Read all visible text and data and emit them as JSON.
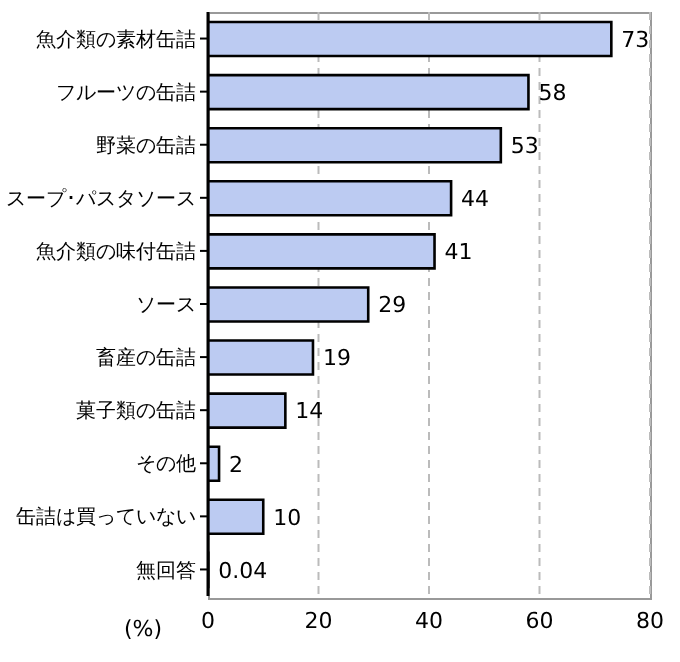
{
  "chart_data": {
    "type": "bar",
    "orientation": "horizontal",
    "xlabel": "(%)",
    "categories": [
      "魚介類の素材缶詰",
      "フルーツの缶詰",
      "野菜の缶詰",
      "スープ･パスタソース",
      "魚介類の味付缶詰",
      "ソース",
      "畜産の缶詰",
      "菓子類の缶詰",
      "その他",
      "缶詰は買っていない",
      "無回答"
    ],
    "values": [
      73,
      58,
      53,
      44,
      41,
      29,
      19,
      14,
      2,
      10,
      0.04
    ],
    "color": "#bccbf2",
    "xlim": [
      0,
      80
    ],
    "xticks": [
      0,
      20,
      40,
      60,
      80
    ],
    "grid": "x",
    "data_labels": true
  }
}
